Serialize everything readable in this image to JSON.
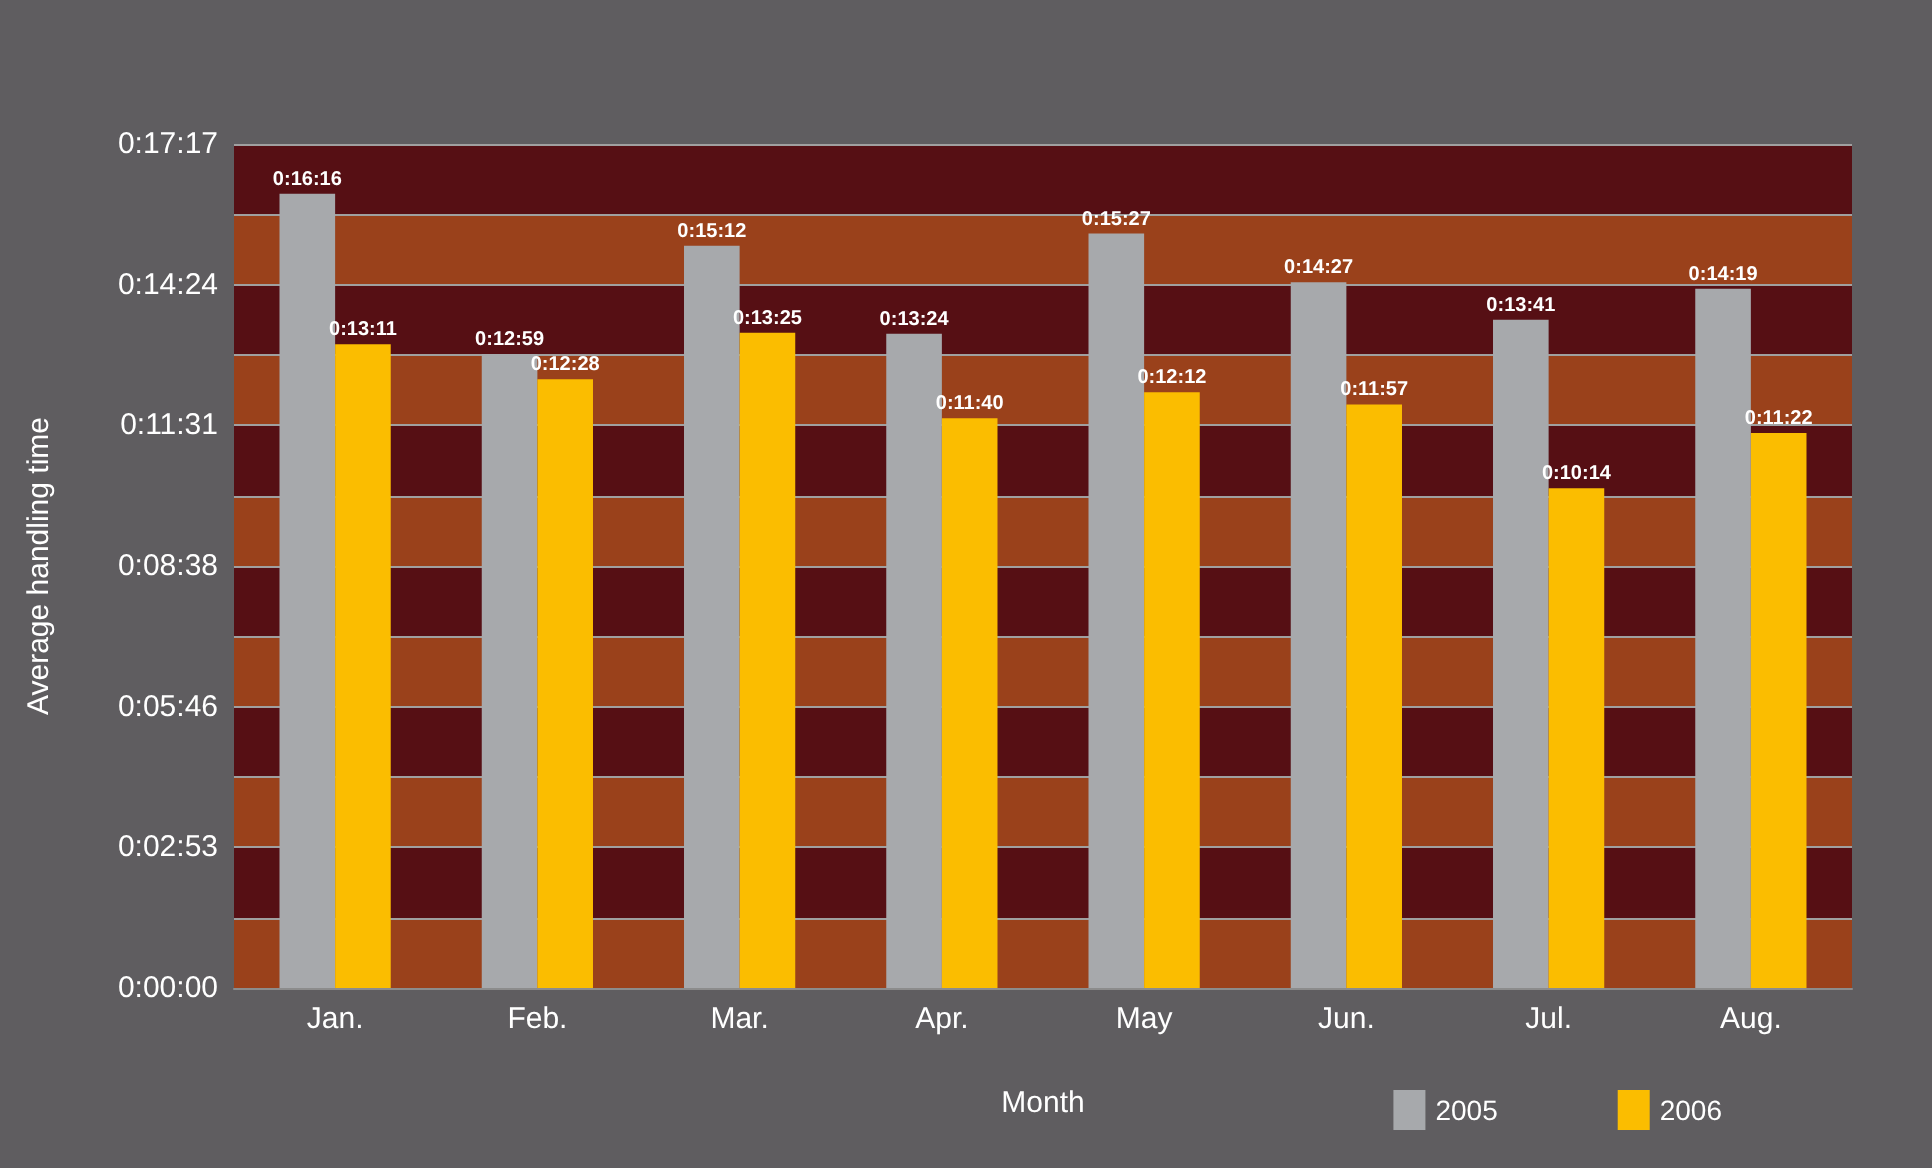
{
  "chart_data": {
    "type": "bar",
    "xlabel": "Month",
    "ylabel": "Average handling time",
    "categories": [
      "Jan.",
      "Feb.",
      "Mar.",
      "Apr.",
      "May",
      "Jun.",
      "Jul.",
      "Aug."
    ],
    "series": [
      {
        "name": "2005",
        "color": "#a7a9ac",
        "values": [
          976,
          779,
          912,
          804,
          927,
          867,
          821,
          859
        ],
        "value_labels": [
          "0:16:16",
          "0:12:59",
          "0:15:12",
          "0:13:24",
          "0:15:27",
          "0:14:27",
          "0:13:41",
          "0:14:19"
        ]
      },
      {
        "name": "2006",
        "color": "#fbbd00",
        "values": [
          791,
          748,
          805,
          700,
          732,
          717,
          614,
          682
        ],
        "value_labels": [
          "0:13:11",
          "0:12:28",
          "0:13:25",
          "0:11:40",
          "0:12:12",
          "0:11:57",
          "0:10:14",
          "0:11:22"
        ]
      }
    ],
    "ylim": [
      0,
      1037
    ],
    "yticks": [
      {
        "value": 0,
        "label": "0:00:00"
      },
      {
        "value": 86.42,
        "label": null
      },
      {
        "value": 172.83,
        "label": "0:02:53"
      },
      {
        "value": 259.25,
        "label": null
      },
      {
        "value": 345.67,
        "label": "0:05:46"
      },
      {
        "value": 432.08,
        "label": null
      },
      {
        "value": 518.5,
        "label": "0:08:38"
      },
      {
        "value": 604.92,
        "label": null
      },
      {
        "value": 691.33,
        "label": "0:11:31"
      },
      {
        "value": 777.75,
        "label": null
      },
      {
        "value": 864.17,
        "label": "0:14:24"
      },
      {
        "value": 950.58,
        "label": null
      },
      {
        "value": 1037,
        "label": "0:17:17"
      }
    ],
    "grid": "y",
    "legend": "bottom right"
  }
}
